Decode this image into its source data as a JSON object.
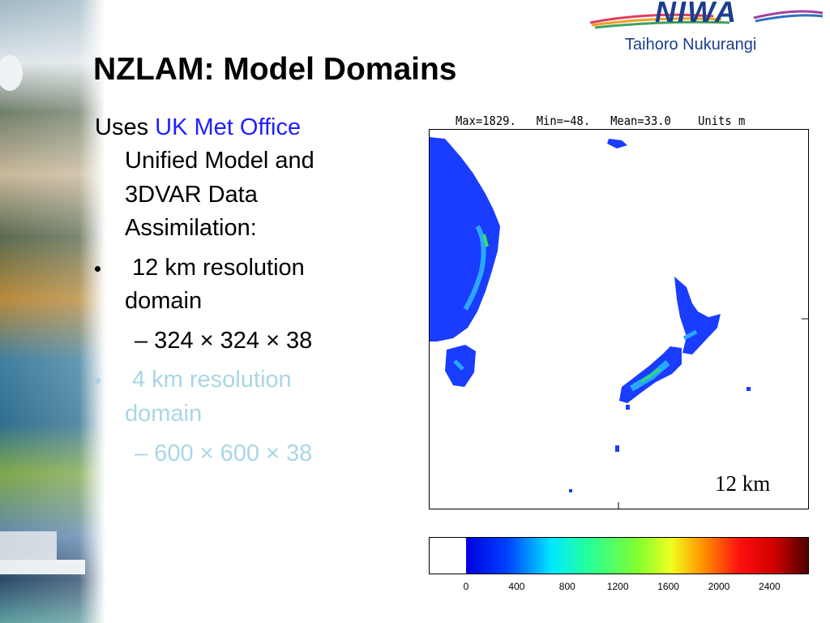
{
  "header": {
    "title": "NZLAM: Model Domains",
    "logo": {
      "name": "NIWA",
      "tagline": "Taihoro Nukurangi"
    }
  },
  "body": {
    "intro": {
      "prefix": "Uses",
      "link": "UK Met Office",
      "lines": [
        "Unified Model and",
        "3DVAR Data",
        "Assimilation:"
      ]
    },
    "bullets": [
      {
        "lines": [
          "12 km resolution",
          "domain"
        ],
        "sub": "– 324 × 324 × 38"
      },
      {
        "lines": [
          "4 km resolution",
          "domain"
        ],
        "sub": "– 600 × 600 × 38"
      }
    ]
  },
  "figure": {
    "stats": "Max=1829.   Min=−48.   Mean=33.0    Units m",
    "label": "12 km",
    "colorbar": {
      "ticks": [
        0,
        400,
        800,
        1200,
        1600,
        2000,
        2400
      ]
    }
  }
}
